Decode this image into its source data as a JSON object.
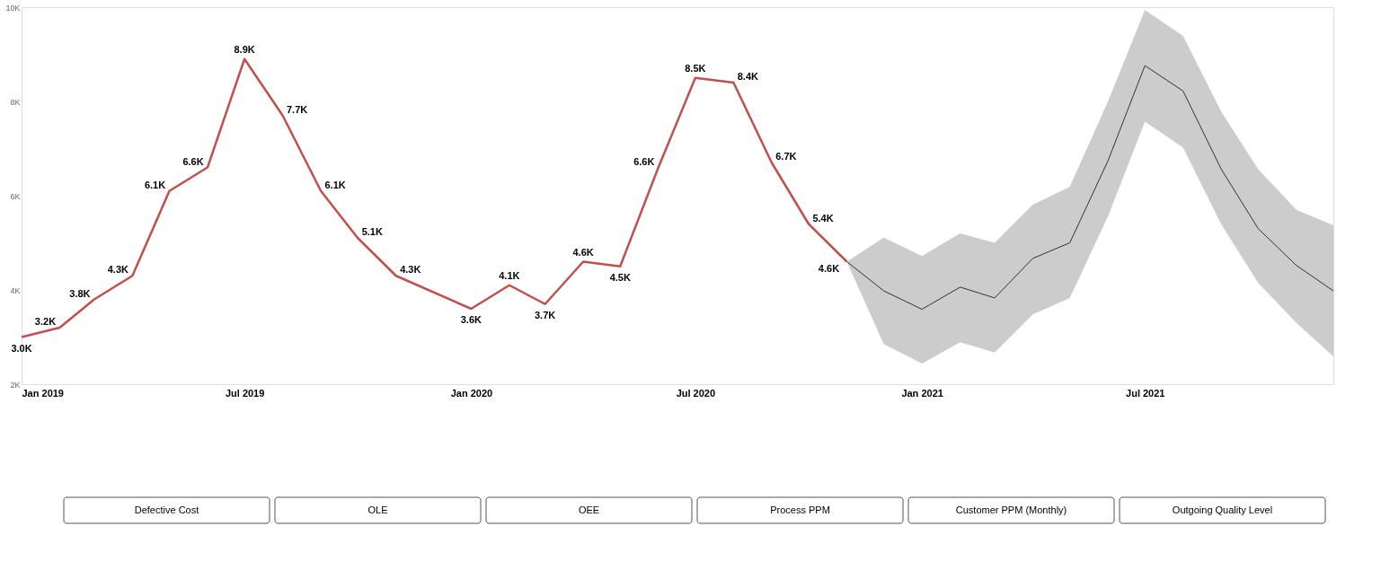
{
  "chart_data": {
    "type": "line",
    "xlim": [
      "2019-01",
      "2021-12"
    ],
    "ylim": [
      2000,
      10000
    ],
    "xticks": [
      {
        "value": "2019-01",
        "label": "Jan 2019"
      },
      {
        "value": "2019-07",
        "label": "Jul 2019"
      },
      {
        "value": "2020-01",
        "label": "Jan 2020"
      },
      {
        "value": "2020-07",
        "label": "Jul 2020"
      },
      {
        "value": "2021-01",
        "label": "Jan 2021"
      },
      {
        "value": "2021-07",
        "label": "Jul 2021"
      }
    ],
    "yticks": [
      {
        "value": 2000,
        "label": "2K"
      },
      {
        "value": 4000,
        "label": "4K"
      },
      {
        "value": 6000,
        "label": "6K"
      },
      {
        "value": 8000,
        "label": "8K"
      },
      {
        "value": 10000,
        "label": "10K"
      }
    ],
    "grid": false,
    "series": [
      {
        "color": "#c0504d",
        "x": [
          "2019-01",
          "2019-02",
          "2019-03",
          "2019-04",
          "2019-05",
          "2019-06",
          "2019-07",
          "2019-08",
          "2019-09",
          "2019-10",
          "2019-11",
          "2020-01",
          "2020-02",
          "2020-03",
          "2020-04",
          "2020-05",
          "2020-06",
          "2020-07",
          "2020-08",
          "2020-09",
          "2020-10",
          "2020-11"
        ],
        "values": [
          3000,
          3200,
          3800,
          4300,
          6100,
          6600,
          8900,
          7700,
          6100,
          5100,
          4300,
          3600,
          4100,
          3700,
          4600,
          4500,
          6600,
          8500,
          8400,
          6700,
          5400,
          4600
        ],
        "value_labels": [
          "3.0K",
          "3.2K",
          "3.8K",
          "4.3K",
          "6.1K",
          "6.6K",
          "8.9K",
          "7.7K",
          "6.1K",
          "5.1K",
          "4.3K",
          "3.6K",
          "4.1K",
          "3.7K",
          "4.6K",
          "4.5K",
          "6.6K",
          "8.5K",
          "8.4K",
          "6.7K",
          "5.4K",
          "4.6K"
        ]
      },
      {
        "color": "#333333",
        "x": [
          "2020-11",
          "2020-12",
          "2021-01",
          "2021-02",
          "2021-03",
          "2021-04",
          "2021-05",
          "2021-06",
          "2021-07",
          "2021-08",
          "2021-09",
          "2021-10",
          "2021-11",
          "2021-12"
        ],
        "values": [
          4600,
          3980,
          3590,
          4060,
          3830,
          4670,
          5000,
          6740,
          8760,
          8220,
          6560,
          5300,
          4520,
          3980
        ],
        "lower": [
          4600,
          2850,
          2440,
          2890,
          2670,
          3480,
          3830,
          5560,
          7570,
          7020,
          5390,
          4150,
          3300,
          2590
        ],
        "upper": [
          4600,
          5110,
          4720,
          5200,
          5000,
          5810,
          6190,
          8000,
          9940,
          9390,
          7780,
          6560,
          5700,
          5370
        ]
      }
    ],
    "annotations": [
      "Defective Cost",
      "OLE",
      "OEE",
      "Process PPM",
      "Customer PPM (Monthly)",
      "Outgoing Quality Level"
    ]
  }
}
